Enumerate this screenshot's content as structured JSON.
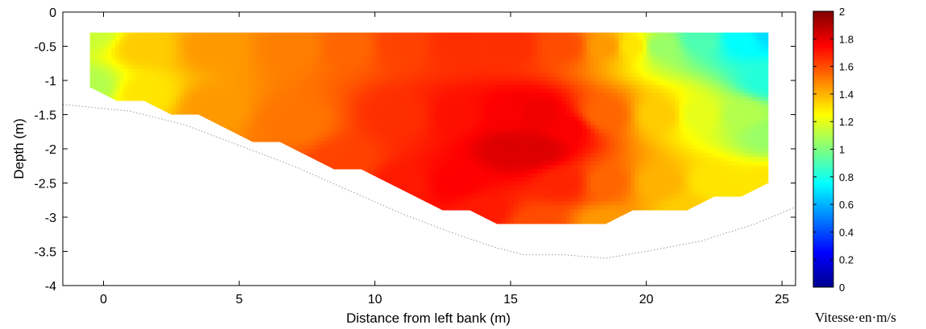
{
  "chart_data": {
    "type": "heatmap",
    "xlabel": "Distance from left bank (m)",
    "ylabel": "Depth (m)",
    "xlim": [
      -1.5,
      25.5
    ],
    "ylim": [
      -4,
      0
    ],
    "xticks": [
      "0",
      "5",
      "10",
      "15",
      "20",
      "25"
    ],
    "yticks": [
      "0",
      "-0.5",
      "-1",
      "-1.5",
      "-2",
      "-2.5",
      "-3",
      "-3.5",
      "-4"
    ],
    "colorbar": {
      "label": "Vitesse·en·m/s",
      "range": [
        0,
        2
      ],
      "ticks": [
        "0",
        "0.2",
        "0.4",
        "0.6",
        "0.8",
        "1",
        "1.2",
        "1.4",
        "1.6",
        "1.8",
        "2"
      ],
      "colormap": "jet"
    },
    "measured_section": {
      "left_profile": [
        [
          -0.5,
          -0.3
        ],
        [
          -0.5,
          -1.1
        ],
        [
          0.5,
          -1.3
        ],
        [
          1.5,
          -1.3
        ],
        [
          2.5,
          -1.5
        ],
        [
          3.5,
          -1.5
        ],
        [
          4.5,
          -1.7
        ],
        [
          5.5,
          -1.9
        ],
        [
          6.5,
          -1.9
        ],
        [
          7.5,
          -2.1
        ],
        [
          8.5,
          -2.3
        ],
        [
          9.5,
          -2.3
        ],
        [
          10.5,
          -2.5
        ],
        [
          11.5,
          -2.7
        ],
        [
          12.5,
          -2.9
        ],
        [
          13.5,
          -2.9
        ],
        [
          14.5,
          -3.1
        ]
      ],
      "bottom_profile": [
        [
          14.5,
          -3.1
        ],
        [
          15.5,
          -3.1
        ],
        [
          16.5,
          -3.1
        ],
        [
          17.5,
          -3.1
        ],
        [
          18.5,
          -3.1
        ],
        [
          19.5,
          -2.9
        ],
        [
          20.5,
          -2.9
        ],
        [
          21.5,
          -2.9
        ],
        [
          22.5,
          -2.7
        ],
        [
          23.5,
          -2.7
        ],
        [
          24.5,
          -2.5
        ],
        [
          24.5,
          -0.3
        ]
      ]
    },
    "velocity_field": {
      "description_points": [
        [
          -0.5,
          -0.3,
          1.15
        ],
        [
          -0.5,
          -1.1,
          1.1
        ],
        [
          1.5,
          -0.5,
          1.35
        ],
        [
          1.5,
          -1.2,
          1.3
        ],
        [
          4,
          -0.5,
          1.45
        ],
        [
          4,
          -1.4,
          1.45
        ],
        [
          7,
          -0.5,
          1.5
        ],
        [
          7,
          -1.6,
          1.52
        ],
        [
          9,
          -0.5,
          1.55
        ],
        [
          9,
          -2.2,
          1.62
        ],
        [
          11,
          -0.5,
          1.62
        ],
        [
          11,
          -1.5,
          1.66
        ],
        [
          11,
          -2.5,
          1.7
        ],
        [
          13,
          -0.5,
          1.66
        ],
        [
          13,
          -1.5,
          1.72
        ],
        [
          13,
          -2.5,
          1.75
        ],
        [
          14,
          -2.9,
          1.7
        ],
        [
          15,
          -2.0,
          1.82
        ],
        [
          16,
          -2.0,
          1.82
        ],
        [
          15,
          -1.5,
          1.76
        ],
        [
          16,
          -1.5,
          1.78
        ],
        [
          15,
          -0.5,
          1.66
        ],
        [
          17,
          -0.5,
          1.6
        ],
        [
          17,
          -1.7,
          1.76
        ],
        [
          17,
          -2.5,
          1.68
        ],
        [
          16,
          -3.1,
          1.6
        ],
        [
          18.5,
          -0.5,
          1.45
        ],
        [
          18.5,
          -1.5,
          1.55
        ],
        [
          18.5,
          -2.5,
          1.55
        ],
        [
          18.5,
          -3.1,
          1.45
        ],
        [
          19.5,
          -0.5,
          1.3
        ],
        [
          20.5,
          -0.5,
          1.05
        ],
        [
          20.5,
          -1.5,
          1.35
        ],
        [
          20.5,
          -2.5,
          1.4
        ],
        [
          21.5,
          -2.9,
          1.35
        ],
        [
          22,
          -0.4,
          0.9
        ],
        [
          22,
          -1.5,
          1.2
        ],
        [
          22.5,
          -2.5,
          1.3
        ],
        [
          23.5,
          -0.4,
          0.75
        ],
        [
          23.5,
          -1.5,
          1.1
        ],
        [
          23.5,
          -2.7,
          1.3
        ],
        [
          24.5,
          -0.3,
          0.68
        ],
        [
          24.5,
          -1.0,
          0.82
        ],
        [
          24.5,
          -1.8,
          1.05
        ],
        [
          24.5,
          -2.5,
          1.3
        ]
      ]
    },
    "riverbed_dotted": [
      [
        -1.5,
        -1.35
      ],
      [
        1,
        -1.45
      ],
      [
        3,
        -1.65
      ],
      [
        5,
        -1.95
      ],
      [
        7,
        -2.25
      ],
      [
        9,
        -2.6
      ],
      [
        11,
        -2.95
      ],
      [
        13,
        -3.25
      ],
      [
        14.5,
        -3.45
      ],
      [
        15.5,
        -3.55
      ],
      [
        17,
        -3.55
      ],
      [
        18.5,
        -3.6
      ],
      [
        20,
        -3.5
      ],
      [
        22,
        -3.35
      ],
      [
        24,
        -3.1
      ],
      [
        25.5,
        -2.85
      ]
    ]
  }
}
